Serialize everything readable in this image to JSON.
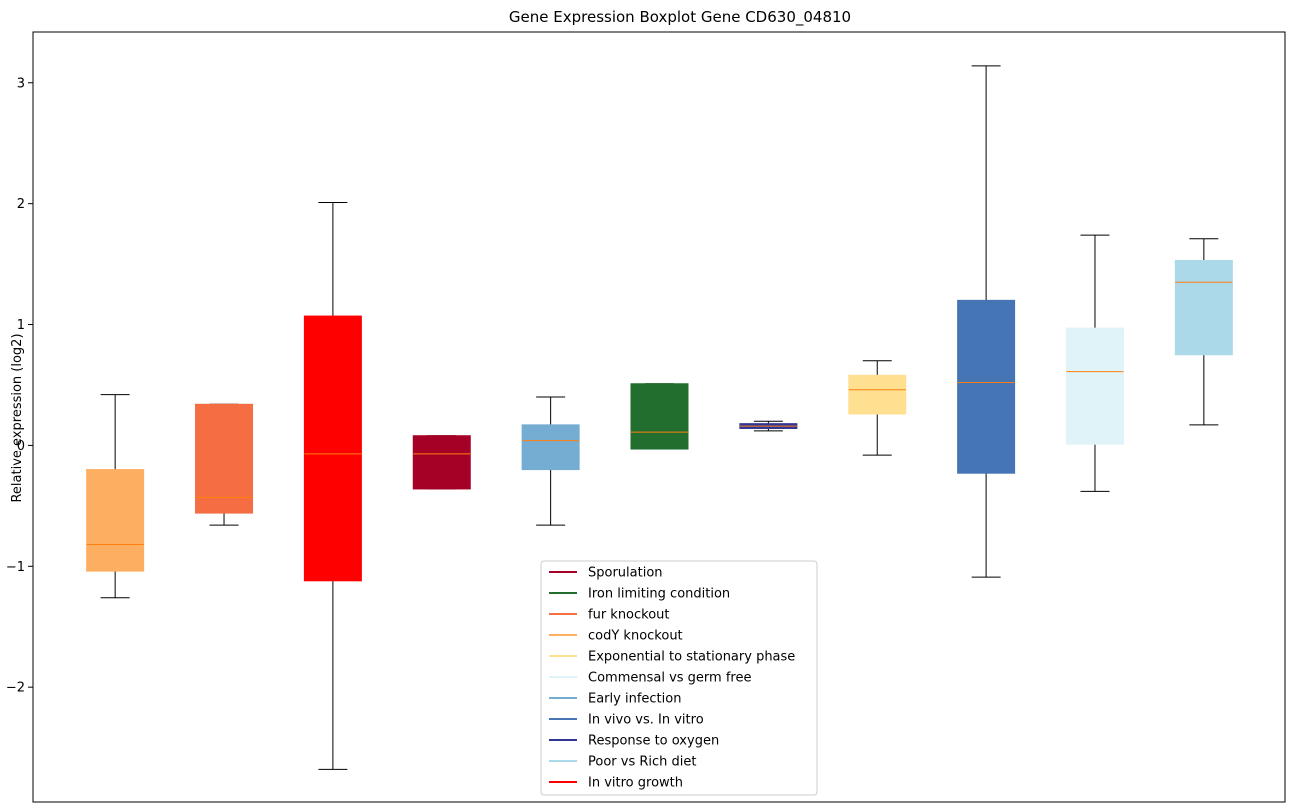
{
  "chart_data": {
    "type": "boxplot",
    "title": "Gene Expression Boxplot Gene CD630_04810",
    "xlabel": "",
    "ylabel": "Relative expression (log2)",
    "ylim": [
      -2.95,
      3.42
    ],
    "yticks": [
      -2,
      -1,
      0,
      1,
      2,
      3
    ],
    "ytick_labels": [
      "−2",
      "−1",
      "0",
      "1",
      "2",
      "3"
    ],
    "grid": false,
    "legend_position": "lower-center",
    "median_color": "#ff7f0e",
    "boxes": [
      {
        "series": "codY knockout",
        "color": "#fdae61",
        "whisker_low": -1.26,
        "q1": -1.04,
        "median": -0.82,
        "q3": -0.2,
        "whisker_high": 0.42
      },
      {
        "series": "fur knockout",
        "color": "#f46d43",
        "whisker_low": -0.66,
        "q1": -0.56,
        "median": -0.43,
        "q3": 0.34,
        "whisker_high": 0.34
      },
      {
        "series": "In vitro growth",
        "color": "#ff0000",
        "whisker_low": -2.68,
        "q1": -1.12,
        "median": -0.07,
        "q3": 1.07,
        "whisker_high": 2.01
      },
      {
        "series": "Sporulation",
        "color": "#a50026",
        "whisker_low": -0.36,
        "q1": -0.36,
        "median": -0.07,
        "q3": 0.08,
        "whisker_high": 0.08
      },
      {
        "series": "Early infection",
        "color": "#74add1",
        "whisker_low": -0.66,
        "q1": -0.2,
        "median": 0.04,
        "q3": 0.17,
        "whisker_high": 0.4
      },
      {
        "series": "Iron limiting condition",
        "color": "#216e2f",
        "whisker_low": -0.03,
        "q1": -0.03,
        "median": 0.11,
        "q3": 0.51,
        "whisker_high": 0.51
      },
      {
        "series": "Response to oxygen",
        "color": "#313695",
        "whisker_low": 0.12,
        "q1": 0.14,
        "median": 0.16,
        "q3": 0.18,
        "whisker_high": 0.2
      },
      {
        "series": "Exponential to stationary phase",
        "color": "#fee090",
        "whisker_low": -0.08,
        "q1": 0.26,
        "median": 0.46,
        "q3": 0.58,
        "whisker_high": 0.7
      },
      {
        "series": "In vivo vs. In vitro",
        "color": "#4575b4",
        "whisker_low": -1.09,
        "q1": -0.23,
        "median": 0.52,
        "q3": 1.2,
        "whisker_high": 3.14
      },
      {
        "series": "Commensal vs germ free",
        "color": "#e0f3f8",
        "whisker_low": -0.38,
        "q1": 0.01,
        "median": 0.61,
        "q3": 0.97,
        "whisker_high": 1.74
      },
      {
        "series": "Poor vs Rich diet",
        "color": "#abd9e9",
        "whisker_low": 0.17,
        "q1": 0.75,
        "median": 1.35,
        "q3": 1.53,
        "whisker_high": 1.71
      }
    ],
    "legend": [
      {
        "label": "Sporulation",
        "color": "#a50026"
      },
      {
        "label": "Iron limiting condition",
        "color": "#216e2f"
      },
      {
        "label": "fur knockout",
        "color": "#f46d43"
      },
      {
        "label": "codY knockout",
        "color": "#fdae61"
      },
      {
        "label": "Exponential to stationary phase",
        "color": "#fee090"
      },
      {
        "label": "Commensal vs germ free",
        "color": "#e0f3f8"
      },
      {
        "label": "Early infection",
        "color": "#74add1"
      },
      {
        "label": "In vivo vs. In vitro",
        "color": "#4575b4"
      },
      {
        "label": "Response to oxygen",
        "color": "#313695"
      },
      {
        "label": "Poor vs Rich diet",
        "color": "#abd9e9"
      },
      {
        "label": "In vitro growth",
        "color": "#ff0000"
      }
    ]
  }
}
